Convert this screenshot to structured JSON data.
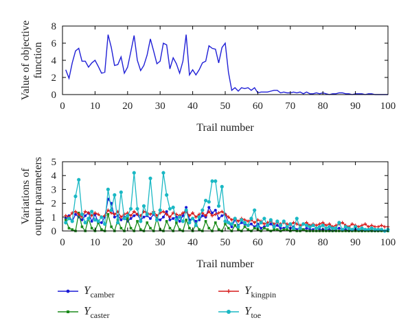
{
  "chart_data": [
    {
      "type": "line",
      "xlabel": "Trail number",
      "ylabel_lines": [
        "Value of objective",
        "function"
      ],
      "xlim": [
        0,
        100
      ],
      "ylim": [
        0,
        8
      ],
      "xticks": [
        0,
        10,
        20,
        30,
        40,
        50,
        60,
        70,
        80,
        90,
        100
      ],
      "yticks": [
        0,
        2,
        4,
        6,
        8
      ],
      "series": [
        {
          "color": "#1f1fd6",
          "marker": "none",
          "x": [
            1,
            2,
            3,
            4,
            5,
            6,
            7,
            8,
            9,
            10,
            11,
            12,
            13,
            14,
            15,
            16,
            17,
            18,
            19,
            20,
            21,
            22,
            23,
            24,
            25,
            26,
            27,
            28,
            29,
            30,
            31,
            32,
            33,
            34,
            35,
            36,
            37,
            38,
            39,
            40,
            41,
            42,
            43,
            44,
            45,
            46,
            47,
            48,
            49,
            50,
            51,
            52,
            53,
            54,
            55,
            56,
            57,
            58,
            59,
            60,
            61,
            62,
            63,
            64,
            65,
            66,
            67,
            68,
            69,
            70,
            71,
            72,
            73,
            74,
            75,
            76,
            77,
            78,
            79,
            80,
            81,
            82,
            83,
            84,
            85,
            86,
            87,
            88,
            89,
            90,
            91,
            92,
            93,
            94,
            95,
            96,
            97,
            98,
            99,
            100
          ],
          "values": [
            2.9,
            1.9,
            3.7,
            5.1,
            5.4,
            3.9,
            3.9,
            3.2,
            3.7,
            4.0,
            3.3,
            2.5,
            2.6,
            7.0,
            5.5,
            3.4,
            3.5,
            4.4,
            2.5,
            3.2,
            5.0,
            6.9,
            4.0,
            2.8,
            3.4,
            4.6,
            6.5,
            5.1,
            3.6,
            3.9,
            6.0,
            5.8,
            3.0,
            4.3,
            3.6,
            2.5,
            3.9,
            7.0,
            2.3,
            2.9,
            2.3,
            2.9,
            3.7,
            3.9,
            5.7,
            5.4,
            5.3,
            3.7,
            5.5,
            6.0,
            2.6,
            0.5,
            0.8,
            0.4,
            0.8,
            0.7,
            0.8,
            0.5,
            0.8,
            0.2,
            0.3,
            0.3,
            0.3,
            0.4,
            0.5,
            0.5,
            0.2,
            0.3,
            0.2,
            0.2,
            0.3,
            0.2,
            0.3,
            0.1,
            0.3,
            0.1,
            0.1,
            0.2,
            0.1,
            0.2,
            0.1,
            0.0,
            0.1,
            0.1,
            0.2,
            0.2,
            0.1,
            0.1,
            0.0,
            0.1,
            0.1,
            0.1,
            0.0,
            0.1,
            0.1,
            0.0,
            0.0,
            0.0,
            0.0,
            0.0
          ]
        }
      ]
    },
    {
      "type": "line",
      "xlabel": "Trail number",
      "ylabel_lines": [
        "Variations of",
        "output parameters"
      ],
      "xlim": [
        0,
        100
      ],
      "ylim": [
        0,
        5
      ],
      "xticks": [
        0,
        10,
        20,
        30,
        40,
        50,
        60,
        70,
        80,
        90,
        100
      ],
      "yticks": [
        0,
        1,
        2,
        3,
        4,
        5
      ],
      "series": [
        {
          "name_main": "Y",
          "name_sub": "camber",
          "color": "#1a1ad6",
          "marker": "circle",
          "x": [
            1,
            2,
            3,
            4,
            5,
            6,
            7,
            8,
            9,
            10,
            11,
            12,
            13,
            14,
            15,
            16,
            17,
            18,
            19,
            20,
            21,
            22,
            23,
            24,
            25,
            26,
            27,
            28,
            29,
            30,
            31,
            32,
            33,
            34,
            35,
            36,
            37,
            38,
            39,
            40,
            41,
            42,
            43,
            44,
            45,
            46,
            47,
            48,
            49,
            50,
            51,
            52,
            53,
            54,
            55,
            56,
            57,
            58,
            59,
            60,
            61,
            62,
            63,
            64,
            65,
            66,
            67,
            68,
            69,
            70,
            71,
            72,
            73,
            74,
            75,
            76,
            77,
            78,
            79,
            80,
            81,
            82,
            83,
            84,
            85,
            86,
            87,
            88,
            89,
            90,
            91,
            92,
            93,
            94,
            95,
            96,
            97,
            98,
            99,
            100
          ],
          "values": [
            0.9,
            1.1,
            0.7,
            1.2,
            1.0,
            0.8,
            1.1,
            1.3,
            0.7,
            1.2,
            0.6,
            0.6,
            1.0,
            2.3,
            2.0,
            1.0,
            1.1,
            0.8,
            1.0,
            0.7,
            0.9,
            1.1,
            1.2,
            0.8,
            1.0,
            1.1,
            0.9,
            1.2,
            0.9,
            0.8,
            1.0,
            1.4,
            0.8,
            0.9,
            1.0,
            0.7,
            1.1,
            1.7,
            0.8,
            0.9,
            0.7,
            0.8,
            1.1,
            1.0,
            1.7,
            1.3,
            1.5,
            0.9,
            1.1,
            1.2,
            0.6,
            0.3,
            0.8,
            0.4,
            0.6,
            0.5,
            0.4,
            0.5,
            0.3,
            0.5,
            0.2,
            0.3,
            0.4,
            0.5,
            0.3,
            0.4,
            0.2,
            0.2,
            0.3,
            0.2,
            0.3,
            0.1,
            0.2,
            0.1,
            0.2,
            0.1,
            0.1,
            0.2,
            0.1,
            0.1,
            0.1,
            0.1,
            0.0,
            0.1,
            0.2,
            0.1,
            0.1,
            0.0,
            0.1,
            0.1,
            0.1,
            0.0,
            0.1,
            0.1,
            0.0,
            0.0,
            0.0,
            0.1,
            0.0,
            0.0
          ]
        },
        {
          "name_main": "Y",
          "name_sub": "caster",
          "color": "#1a8a1a",
          "marker": "square",
          "x": [
            1,
            2,
            3,
            4,
            5,
            6,
            7,
            8,
            9,
            10,
            11,
            12,
            13,
            14,
            15,
            16,
            17,
            18,
            19,
            20,
            21,
            22,
            23,
            24,
            25,
            26,
            27,
            28,
            29,
            30,
            31,
            32,
            33,
            34,
            35,
            36,
            37,
            38,
            39,
            40,
            41,
            42,
            43,
            44,
            45,
            46,
            47,
            48,
            49,
            50,
            51,
            52,
            53,
            54,
            55,
            56,
            57,
            58,
            59,
            60,
            61,
            62,
            63,
            64,
            65,
            66,
            67,
            68,
            69,
            70,
            71,
            72,
            73,
            74,
            75,
            76,
            77,
            78,
            79,
            80,
            81,
            82,
            83,
            84,
            85,
            86,
            87,
            88,
            89,
            90,
            91,
            92,
            93,
            94,
            95,
            96,
            97,
            98,
            99,
            100
          ],
          "values": [
            0.8,
            0.2,
            0.1,
            0.0,
            1.3,
            0.3,
            0.0,
            0.9,
            0.2,
            0.0,
            0.6,
            0.1,
            0.0,
            1.2,
            0.3,
            0.0,
            0.8,
            0.2,
            0.0,
            0.9,
            0.2,
            0.0,
            0.7,
            0.1,
            0.0,
            0.6,
            0.2,
            0.0,
            0.9,
            0.1,
            0.0,
            0.7,
            0.2,
            0.0,
            0.6,
            0.1,
            0.0,
            0.8,
            0.2,
            0.0,
            0.5,
            0.1,
            0.0,
            0.7,
            0.2,
            0.0,
            0.6,
            0.1,
            0.0,
            0.5,
            0.2,
            0.0,
            0.4,
            0.1,
            0.0,
            0.3,
            0.1,
            0.0,
            0.2,
            0.1,
            0.0,
            0.2,
            0.1,
            0.0,
            0.1,
            0.1,
            0.0,
            0.1,
            0.1,
            0.0,
            0.1,
            0.0,
            0.0,
            0.1,
            0.0,
            0.0,
            0.0,
            0.0,
            0.0,
            0.0,
            0.0,
            0.0,
            0.0,
            0.0,
            0.0,
            0.0,
            0.0,
            0.0,
            0.0,
            0.0,
            0.0,
            0.0,
            0.0,
            0.0,
            0.0,
            0.0,
            0.0,
            0.0,
            0.0,
            0.0
          ]
        },
        {
          "name_main": "Y",
          "name_sub": "kingpin",
          "color": "#d61a1a",
          "marker": "plus",
          "x": [
            1,
            2,
            3,
            4,
            5,
            6,
            7,
            8,
            9,
            10,
            11,
            12,
            13,
            14,
            15,
            16,
            17,
            18,
            19,
            20,
            21,
            22,
            23,
            24,
            25,
            26,
            27,
            28,
            29,
            30,
            31,
            32,
            33,
            34,
            35,
            36,
            37,
            38,
            39,
            40,
            41,
            42,
            43,
            44,
            45,
            46,
            47,
            48,
            49,
            50,
            51,
            52,
            53,
            54,
            55,
            56,
            57,
            58,
            59,
            60,
            61,
            62,
            63,
            64,
            65,
            66,
            67,
            68,
            69,
            70,
            71,
            72,
            73,
            74,
            75,
            76,
            77,
            78,
            79,
            80,
            81,
            82,
            83,
            84,
            85,
            86,
            87,
            88,
            89,
            90,
            91,
            92,
            93,
            94,
            95,
            96,
            97,
            98,
            99,
            100
          ],
          "values": [
            1.1,
            1.0,
            1.3,
            1.4,
            1.2,
            1.0,
            1.4,
            1.3,
            1.1,
            1.3,
            1.2,
            1.0,
            1.1,
            1.5,
            1.3,
            1.2,
            1.4,
            1.0,
            1.2,
            1.3,
            1.1,
            1.4,
            1.2,
            1.1,
            1.4,
            1.3,
            1.2,
            1.4,
            1.1,
            1.3,
            1.4,
            1.2,
            1.0,
            1.3,
            1.2,
            1.1,
            1.3,
            1.4,
            1.1,
            1.3,
            1.0,
            1.2,
            1.3,
            1.1,
            1.4,
            1.1,
            1.2,
            1.3,
            1.4,
            1.2,
            1.0,
            0.8,
            0.9,
            0.7,
            0.9,
            0.8,
            0.7,
            0.8,
            0.6,
            0.8,
            0.7,
            0.5,
            0.6,
            0.7,
            0.5,
            0.6,
            0.5,
            0.6,
            0.5,
            0.4,
            0.6,
            0.5,
            0.4,
            0.5,
            0.6,
            0.4,
            0.5,
            0.4,
            0.5,
            0.6,
            0.4,
            0.5,
            0.3,
            0.4,
            0.5,
            0.6,
            0.4,
            0.3,
            0.5,
            0.4,
            0.3,
            0.4,
            0.5,
            0.3,
            0.4,
            0.3,
            0.3,
            0.4,
            0.3,
            0.3
          ]
        },
        {
          "name_main": "Y",
          "name_sub": "toe",
          "color": "#1ab8c4",
          "marker": "circle",
          "x": [
            1,
            2,
            3,
            4,
            5,
            6,
            7,
            8,
            9,
            10,
            11,
            12,
            13,
            14,
            15,
            16,
            17,
            18,
            19,
            20,
            21,
            22,
            23,
            24,
            25,
            26,
            27,
            28,
            29,
            30,
            31,
            32,
            33,
            34,
            35,
            36,
            37,
            38,
            39,
            40,
            41,
            42,
            43,
            44,
            45,
            46,
            47,
            48,
            49,
            50,
            51,
            52,
            53,
            54,
            55,
            56,
            57,
            58,
            59,
            60,
            61,
            62,
            63,
            64,
            65,
            66,
            67,
            68,
            69,
            70,
            71,
            72,
            73,
            74,
            75,
            76,
            77,
            78,
            79,
            80,
            81,
            82,
            83,
            84,
            85,
            86,
            87,
            88,
            89,
            90,
            91,
            92,
            93,
            94,
            95,
            96,
            97,
            98,
            99,
            100
          ],
          "values": [
            0.6,
            0.9,
            0.7,
            2.5,
            3.7,
            1.2,
            0.6,
            0.9,
            1.4,
            0.8,
            0.7,
            1.0,
            0.5,
            3.0,
            1.5,
            2.6,
            0.6,
            2.8,
            0.9,
            1.1,
            1.6,
            4.2,
            1.6,
            0.7,
            1.8,
            1.2,
            3.8,
            1.3,
            0.8,
            1.5,
            4.2,
            2.6,
            1.6,
            1.7,
            0.8,
            1.0,
            0.7,
            1.5,
            0.6,
            0.9,
            0.4,
            1.0,
            1.5,
            2.2,
            2.1,
            3.6,
            3.6,
            1.8,
            3.2,
            0.7,
            0.6,
            0.5,
            0.9,
            0.3,
            0.8,
            0.6,
            0.4,
            0.9,
            1.5,
            0.3,
            0.6,
            0.9,
            0.4,
            0.8,
            0.3,
            0.7,
            0.4,
            0.7,
            0.3,
            0.5,
            0.2,
            0.9,
            0.2,
            0.5,
            0.4,
            0.3,
            0.4,
            0.2,
            0.3,
            0.4,
            0.2,
            0.3,
            0.2,
            0.2,
            0.6,
            0.1,
            0.3,
            0.2,
            0.1,
            0.3,
            0.1,
            0.2,
            0.1,
            0.1,
            0.2,
            0.1,
            0.1,
            0.1,
            0.0,
            0.1
          ]
        }
      ]
    }
  ]
}
